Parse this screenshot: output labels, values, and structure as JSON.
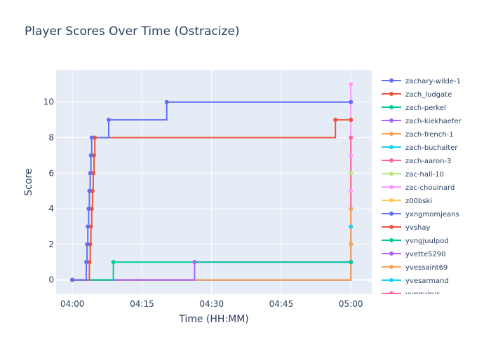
{
  "chart_data": {
    "type": "line",
    "line_shape": "step",
    "title": "Player Scores Over Time (Ostracize)",
    "xlabel": "Time (HH:MM)",
    "ylabel": "Score",
    "x_ticks": [
      "04:00",
      "04:15",
      "04:30",
      "04:45",
      "05:00"
    ],
    "y_ticks": [
      0,
      2,
      4,
      6,
      8,
      10
    ],
    "xlim": [
      "03:56:30",
      "05:04:30"
    ],
    "ylim": [
      -0.8,
      11.8
    ],
    "grid": true,
    "legend_position": "right",
    "series": [
      {
        "name": "zachary-wilde-1",
        "color": "#636efa",
        "points": [
          {
            "x": "04:00:00",
            "y": 0
          },
          {
            "x": "04:03:00",
            "y": 1
          },
          {
            "x": "04:03:10",
            "y": 2
          },
          {
            "x": "04:03:20",
            "y": 3
          },
          {
            "x": "04:03:30",
            "y": 4
          },
          {
            "x": "04:03:40",
            "y": 5
          },
          {
            "x": "04:03:50",
            "y": 6
          },
          {
            "x": "04:04:00",
            "y": 7
          },
          {
            "x": "04:04:10",
            "y": 8
          },
          {
            "x": "04:07:50",
            "y": 9
          },
          {
            "x": "04:20:20",
            "y": 10
          },
          {
            "x": "05:00:00",
            "y": 10
          }
        ]
      },
      {
        "name": "zach_ludgate",
        "color": "#ef553b",
        "points": [
          {
            "x": "04:00:00",
            "y": 0
          },
          {
            "x": "04:03:40",
            "y": 1
          },
          {
            "x": "04:03:50",
            "y": 2
          },
          {
            "x": "04:04:00",
            "y": 3
          },
          {
            "x": "04:04:10",
            "y": 4
          },
          {
            "x": "04:04:20",
            "y": 5
          },
          {
            "x": "04:04:30",
            "y": 6
          },
          {
            "x": "04:04:40",
            "y": 7
          },
          {
            "x": "04:04:50",
            "y": 8
          },
          {
            "x": "04:56:40",
            "y": 9
          },
          {
            "x": "05:00:00",
            "y": 9
          }
        ]
      },
      {
        "name": "zach-perkel",
        "color": "#00cc96",
        "points": [
          {
            "x": "04:00:00",
            "y": 0
          },
          {
            "x": "04:08:50",
            "y": 1
          },
          {
            "x": "05:00:00",
            "y": 1
          }
        ]
      },
      {
        "name": "zach-kiekhaefer",
        "color": "#ab63fa",
        "points": [
          {
            "x": "04:00:00",
            "y": 0
          },
          {
            "x": "04:26:20",
            "y": 1
          },
          {
            "x": "05:00:00",
            "y": 1
          }
        ]
      },
      {
        "name": "zach-french-1",
        "color": "#ffa15a",
        "points": [
          {
            "x": "04:00:00",
            "y": 0
          },
          {
            "x": "05:00:00",
            "y": 2
          },
          {
            "x": "05:00:00",
            "y": 4
          }
        ]
      },
      {
        "name": "zach-buchalter",
        "color": "#19d3f3",
        "points": [
          {
            "x": "04:00:00",
            "y": 0
          },
          {
            "x": "05:00:00",
            "y": 1
          },
          {
            "x": "05:00:00",
            "y": 3
          }
        ]
      },
      {
        "name": "zach-aaron-3",
        "color": "#ff6692",
        "points": [
          {
            "x": "04:00:00",
            "y": 0
          },
          {
            "x": "05:00:00",
            "y": 1
          },
          {
            "x": "05:00:00",
            "y": 8
          }
        ]
      },
      {
        "name": "zac-hall-10",
        "color": "#b6e880",
        "points": [
          {
            "x": "04:00:00",
            "y": 0
          },
          {
            "x": "05:00:00",
            "y": 2
          },
          {
            "x": "05:00:00",
            "y": 6
          }
        ]
      },
      {
        "name": "zac-chouinard",
        "color": "#ff97ff",
        "points": [
          {
            "x": "04:00:00",
            "y": 0
          },
          {
            "x": "05:00:00",
            "y": 3
          },
          {
            "x": "05:00:00",
            "y": 5
          },
          {
            "x": "05:00:00",
            "y": 7
          },
          {
            "x": "05:00:00",
            "y": 8
          },
          {
            "x": "05:00:00",
            "y": 10
          },
          {
            "x": "05:00:00",
            "y": 11
          }
        ]
      },
      {
        "name": "z00bski",
        "color": "#fecb52",
        "points": [
          {
            "x": "04:00:00",
            "y": 0
          },
          {
            "x": "05:00:00",
            "y": 2
          }
        ]
      },
      {
        "name": "yxngmomjeans",
        "color": "#636efa",
        "points": [
          {
            "x": "04:00:00",
            "y": 0
          },
          {
            "x": "05:00:00",
            "y": 4
          }
        ]
      },
      {
        "name": "yvshay",
        "color": "#ef553b",
        "points": [
          {
            "x": "04:00:00",
            "y": 0
          },
          {
            "x": "05:00:00",
            "y": 1
          }
        ]
      },
      {
        "name": "yvngjuulpod",
        "color": "#00cc96",
        "points": [
          {
            "x": "04:00:00",
            "y": 0
          },
          {
            "x": "05:00:00",
            "y": 2
          }
        ]
      },
      {
        "name": "yvette5290",
        "color": "#ab63fa",
        "points": [
          {
            "x": "04:00:00",
            "y": 0
          },
          {
            "x": "05:00:00",
            "y": 1
          }
        ]
      },
      {
        "name": "yvessaint69",
        "color": "#ffa15a",
        "points": [
          {
            "x": "04:00:00",
            "y": 0
          },
          {
            "x": "05:00:00",
            "y": 3
          }
        ]
      },
      {
        "name": "yvesarmand",
        "color": "#19d3f3",
        "points": [
          {
            "x": "04:00:00",
            "y": 0
          },
          {
            "x": "05:00:00",
            "y": 1
          }
        ]
      },
      {
        "name": "yungvirus",
        "color": "#ff6692",
        "points": [
          {
            "x": "04:00:00",
            "y": 0
          },
          {
            "x": "05:00:00",
            "y": 1
          }
        ]
      }
    ]
  }
}
